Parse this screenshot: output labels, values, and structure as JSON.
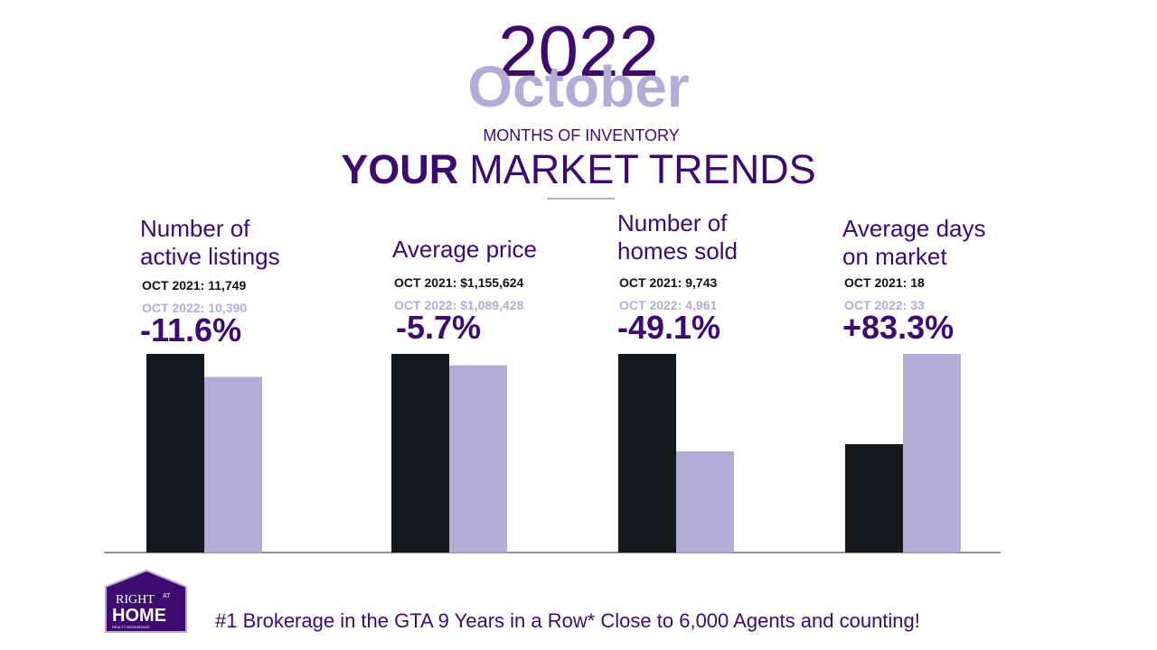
{
  "header": {
    "year": "2022",
    "month": "October",
    "subtitle": "MONTHS OF INVENTORY",
    "title_bold": "YOUR",
    "title_rest": "MARKET TRENDS"
  },
  "panels": [
    {
      "title": [
        "Number of",
        "active listings"
      ],
      "prev_label": "OCT 2021:",
      "prev": {
        "value": 11749,
        "label": "11,749"
      },
      "curr_label": "OCT  2022:",
      "curr": {
        "value": 10390,
        "label": "10,390"
      },
      "change": "-11.6%"
    },
    {
      "title": [
        "Average price"
      ],
      "prev_label": "OCT 2021:",
      "prev": {
        "value": 1155624,
        "label": "$1,155,624"
      },
      "curr_label": "OCT  2022:",
      "curr": {
        "value": 1089428,
        "label": "$1,089,428"
      },
      "change": "-5.7%"
    },
    {
      "title": [
        "Number of",
        "homes sold"
      ],
      "prev_label": "OCT 2021:",
      "prev": {
        "value": 9743,
        "label": "9,743"
      },
      "curr_label": "OCT  2022:",
      "curr": {
        "value": 4961,
        "label": "4,961"
      },
      "change": "-49.1%"
    },
    {
      "title": [
        "Average days",
        "on market"
      ],
      "prev_label": "OCT 2021:",
      "prev": {
        "value": 18,
        "label": "18"
      },
      "curr_label": "OCT  2022:",
      "curr": {
        "value": 33,
        "label": "33"
      },
      "change": "+83.3%"
    }
  ],
  "logo": {
    "line1": "RIGHT",
    "at": "AT",
    "line2": "HOME",
    "small": "REALTY BROKERAGE"
  },
  "footer": "#1 Brokerage in the GTA 9 Years in a Row* Close to 6,000 Agents and counting!"
}
